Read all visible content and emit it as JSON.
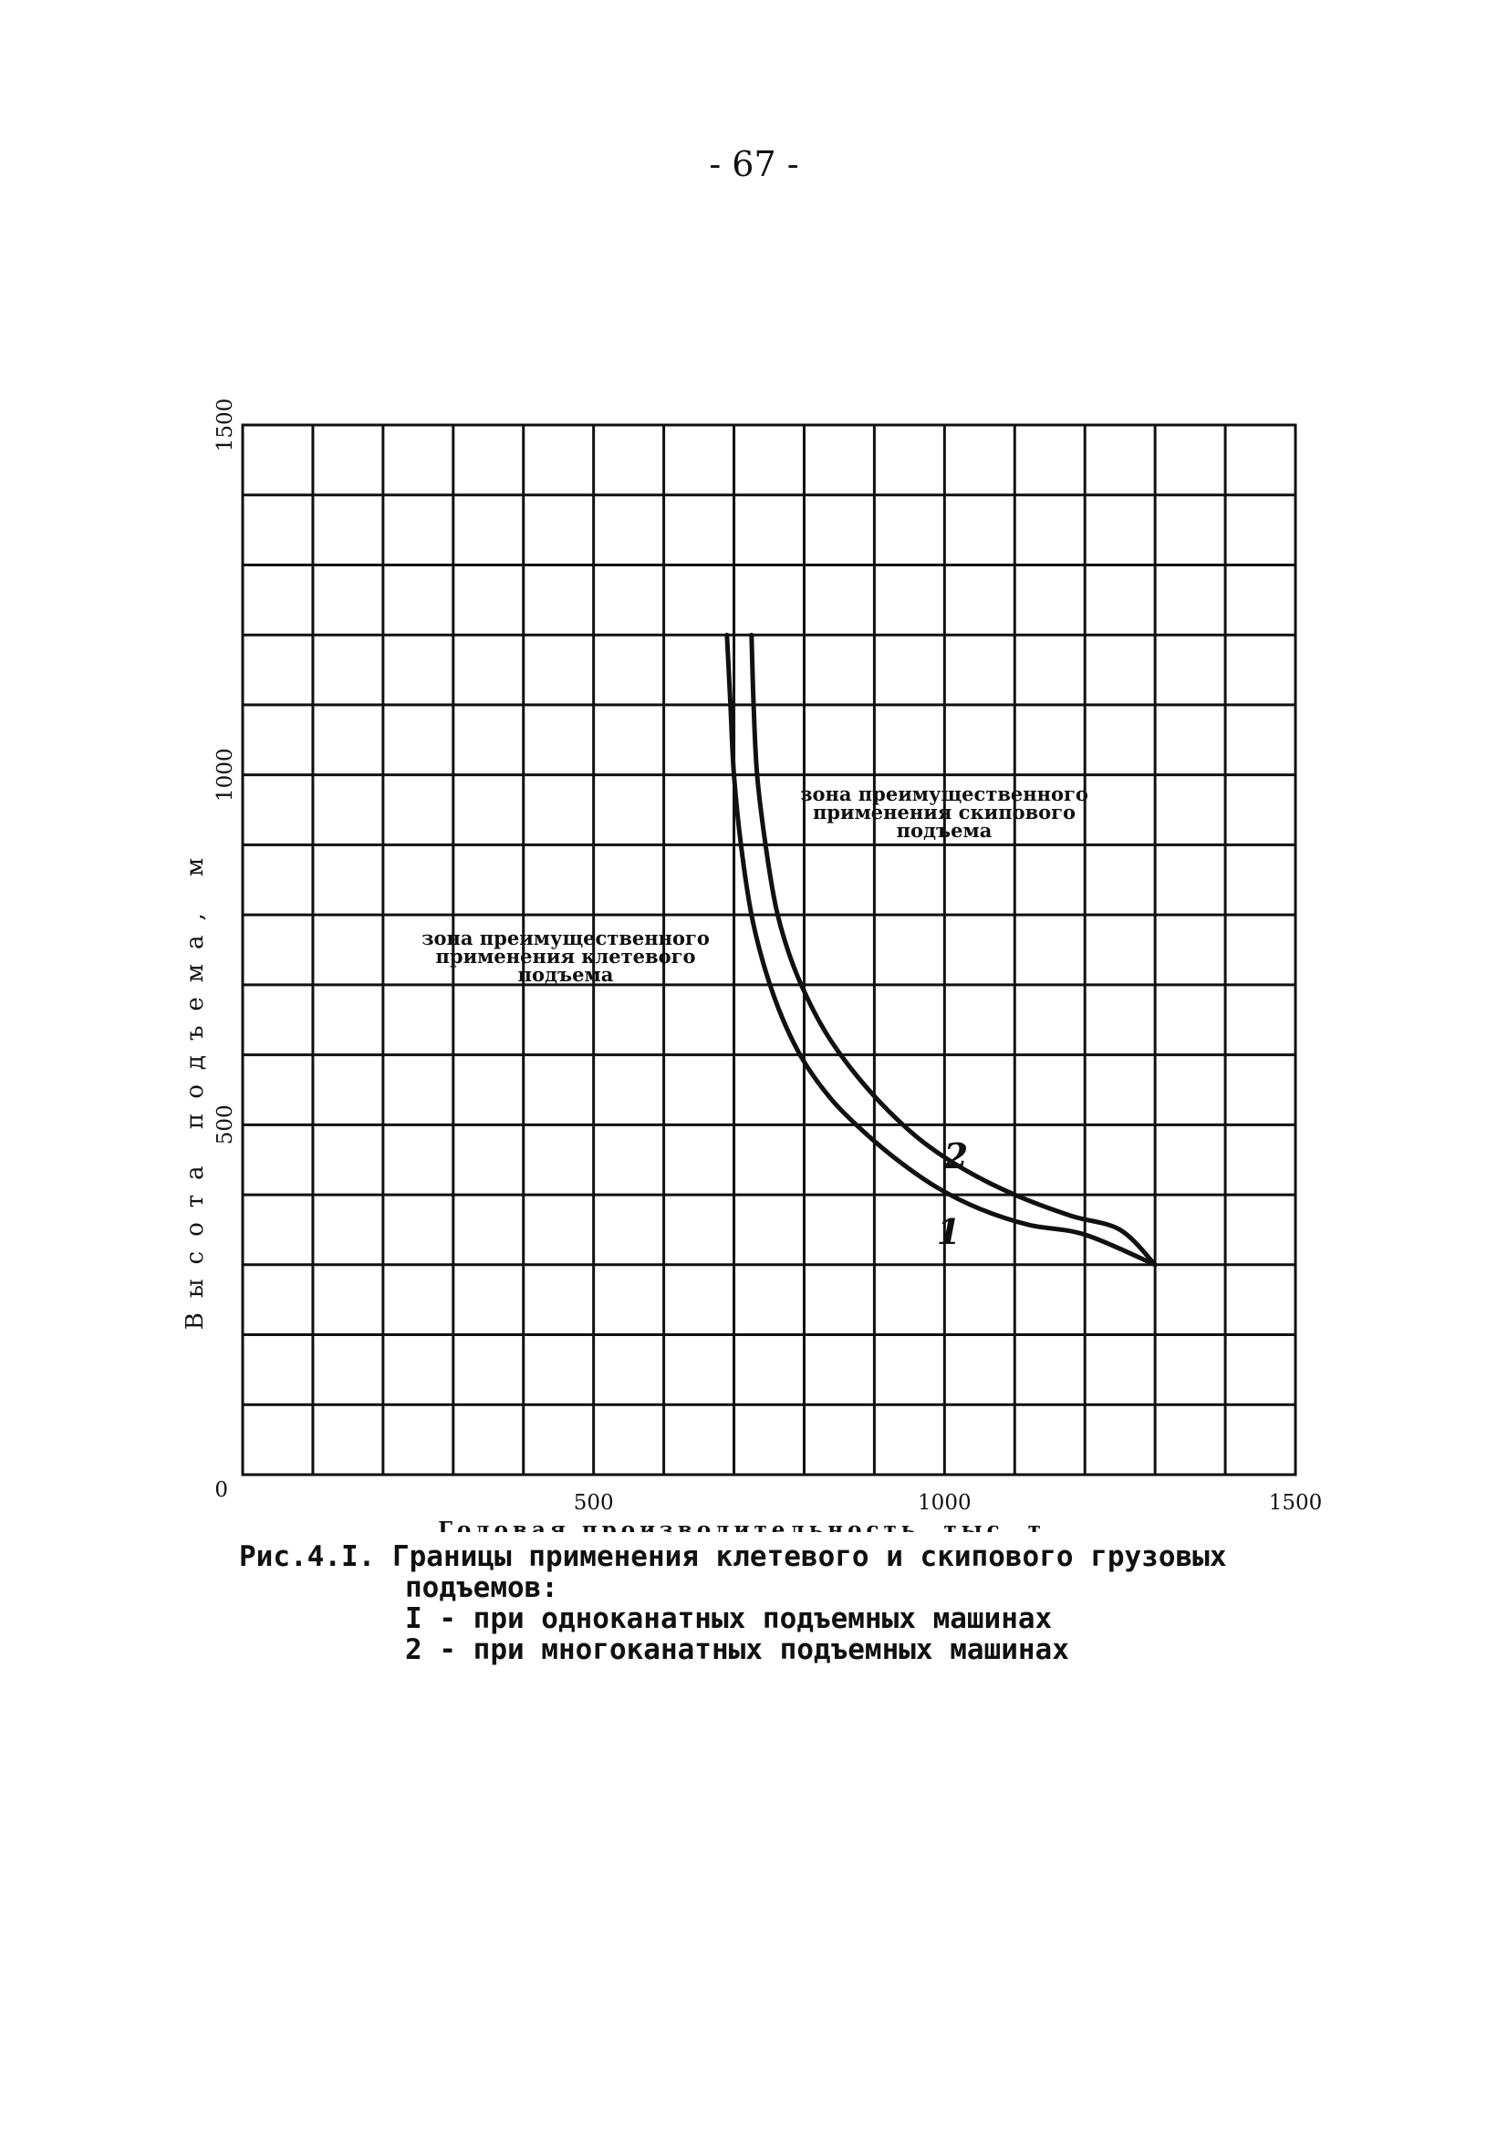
{
  "page_number": "- 67 -",
  "chart_data": {
    "type": "line",
    "xlabel": "Годовая производительность,   тыс. т",
    "ylabel": "Высота подъема,  м",
    "xlim": [
      0,
      1500
    ],
    "ylim": [
      0,
      1500
    ],
    "x_ticks": [
      0,
      500,
      1000,
      1500
    ],
    "x_tick_labels": [
      "500",
      "1000",
      "1500"
    ],
    "y_ticks": [
      0,
      500,
      1000,
      1500
    ],
    "y_tick_labels": [
      "0",
      "500",
      "1000",
      "1500"
    ],
    "origin_label": "0",
    "grid": true,
    "grid_step": 100,
    "series": [
      {
        "name": "1",
        "x": [
          690,
          695,
          700,
          710,
          725,
          745,
          770,
          800,
          840,
          885,
          935,
          990,
          1050,
          1120,
          1200,
          1300
        ],
        "y": [
          1200,
          1100,
          1000,
          900,
          800,
          720,
          650,
          590,
          535,
          490,
          448,
          410,
          380,
          357,
          343,
          300
        ]
      },
      {
        "name": "2",
        "x": [
          725,
          728,
          733,
          745,
          760,
          780,
          805,
          835,
          875,
          920,
          970,
          1030,
          1100,
          1180,
          1250,
          1300
        ],
        "y": [
          1200,
          1100,
          1000,
          900,
          810,
          740,
          680,
          625,
          570,
          520,
          475,
          435,
          400,
          370,
          350,
          300
        ]
      }
    ],
    "annotations": [
      {
        "text_lines": [
          "зона преимущественного",
          "применения   клетевого",
          "подъема"
        ]
      },
      {
        "text_lines": [
          "зона преимущественного",
          "применения   скипового",
          "подъема"
        ]
      }
    ]
  },
  "caption": {
    "prefix": "Рис.4.I.",
    "title_line1": "Границы применения клетевого и скипового грузовых",
    "title_line2": "подъемов:",
    "item1": "I - при одноканатных подъемных машинах",
    "item2": "2 - при многоканатных подъемных машинах"
  }
}
